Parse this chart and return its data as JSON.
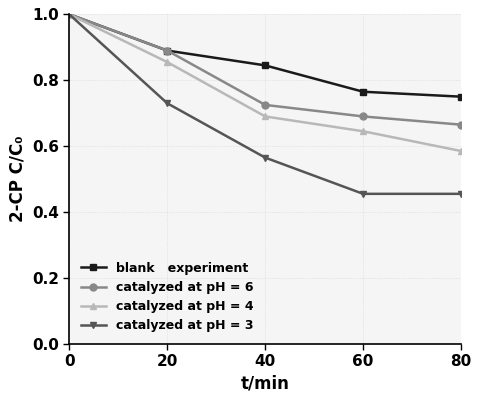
{
  "x": [
    0,
    20,
    40,
    60,
    80
  ],
  "series": [
    {
      "label": "blank   experiment",
      "y": [
        1.0,
        0.89,
        0.845,
        0.765,
        0.75
      ],
      "color": "#1a1a1a",
      "marker": "s",
      "linewidth": 1.8,
      "markersize": 5,
      "linestyle": "-"
    },
    {
      "label": "catalyzed at pH = 6",
      "y": [
        1.0,
        0.89,
        0.725,
        0.69,
        0.665
      ],
      "color": "#888888",
      "marker": "o",
      "linewidth": 1.8,
      "markersize": 5,
      "linestyle": "-"
    },
    {
      "label": "catalyzed at pH = 4",
      "y": [
        1.0,
        0.855,
        0.69,
        0.645,
        0.585
      ],
      "color": "#b8b8b8",
      "marker": "^",
      "linewidth": 1.8,
      "markersize": 5,
      "linestyle": "-"
    },
    {
      "label": "catalyzed at pH = 3",
      "y": [
        1.0,
        0.73,
        0.565,
        0.455,
        0.455
      ],
      "color": "#555555",
      "marker": "v",
      "linewidth": 1.8,
      "markersize": 5,
      "linestyle": "-"
    }
  ],
  "xlabel": "t/min",
  "ylabel": "2-CP C/C₀",
  "xlim": [
    0,
    80
  ],
  "ylim": [
    0.0,
    1.0
  ],
  "xticks": [
    0,
    20,
    40,
    60,
    80
  ],
  "yticks": [
    0.0,
    0.2,
    0.4,
    0.6,
    0.8,
    1.0
  ],
  "legend_loc": "lower left",
  "legend_fontsize": 9,
  "axis_label_fontsize": 12,
  "tick_fontsize": 11,
  "background_color": "#f5f5f5",
  "figure_facecolor": "#ffffff"
}
